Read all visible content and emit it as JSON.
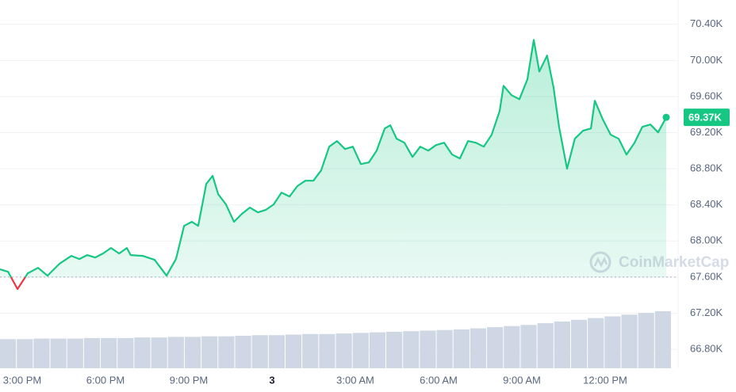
{
  "chart_data": {
    "type": "line",
    "x": [
      -9.8,
      -9.51,
      -9.17,
      -8.8,
      -8.43,
      -8.09,
      -7.66,
      -7.23,
      -6.94,
      -6.66,
      -6.37,
      -6.09,
      -5.8,
      -5.51,
      -5.23,
      -5.09,
      -4.66,
      -4.23,
      -3.8,
      -3.46,
      -3.17,
      -2.89,
      -2.66,
      -2.37,
      -2.14,
      -1.94,
      -1.66,
      -1.37,
      -1.09,
      -0.8,
      -0.51,
      -0.23,
      0.06,
      0.34,
      0.63,
      0.91,
      1.2,
      1.49,
      1.77,
      2.06,
      2.34,
      2.63,
      2.91,
      3.2,
      3.49,
      3.77,
      4.06,
      4.26,
      4.49,
      4.77,
      5.06,
      5.34,
      5.63,
      5.91,
      6.2,
      6.49,
      6.77,
      7.06,
      7.34,
      7.63,
      7.91,
      8.2,
      8.34,
      8.63,
      8.91,
      9.2,
      9.43,
      9.63,
      9.91,
      10.14,
      10.34,
      10.63,
      10.91,
      11.2,
      11.49,
      11.63,
      11.91,
      12.2,
      12.49,
      12.77,
      13.06,
      13.34,
      13.63,
      13.91,
      14.2
    ],
    "series": [
      {
        "color": "#16c784",
        "below_color": "#ea3943",
        "values": [
          67686,
          67659,
          67467,
          67642,
          67703,
          67616,
          67747,
          67835,
          67800,
          67844,
          67817,
          67861,
          67923,
          67861,
          67923,
          67844,
          67835,
          67791,
          67616,
          67800,
          68168,
          68212,
          68168,
          68633,
          68721,
          68519,
          68405,
          68212,
          68300,
          68370,
          68317,
          68344,
          68405,
          68536,
          68493,
          68607,
          68668,
          68668,
          68782,
          69045,
          69107,
          69019,
          69045,
          68852,
          68870,
          69001,
          69247,
          69282,
          69133,
          69089,
          68931,
          69045,
          69001,
          69063,
          69089,
          68957,
          68914,
          69107,
          69089,
          69045,
          69177,
          69440,
          69720,
          69615,
          69571,
          69791,
          70229,
          69878,
          70054,
          69703,
          69264,
          68800,
          69133,
          69221,
          69247,
          69554,
          69352,
          69177,
          69133,
          68957,
          69089,
          69264,
          69291,
          69203,
          69370
        ]
      }
    ],
    "reference_value": 67600,
    "current_price": {
      "value": 69370,
      "label": "69.37K"
    },
    "volume": {
      "color": "#cfd6e4",
      "lim": [
        0,
        100
      ],
      "values": [
        51,
        51,
        52,
        52,
        52,
        53,
        53,
        53,
        54,
        54,
        55,
        55,
        56,
        56,
        57,
        58,
        58,
        59,
        60,
        60,
        61,
        62,
        63,
        64,
        65,
        66,
        67,
        68,
        70,
        72,
        74,
        76,
        79,
        82,
        85,
        88,
        91,
        94,
        97,
        100
      ]
    },
    "xlim": [
      -9.8,
      14.4
    ],
    "xticks": [
      {
        "value": -9,
        "label": "3:00 PM"
      },
      {
        "value": -6,
        "label": "6:00 PM"
      },
      {
        "value": -3,
        "label": "9:00 PM"
      },
      {
        "value": 0,
        "label": "3"
      },
      {
        "value": 3,
        "label": "3:00 AM"
      },
      {
        "value": 6,
        "label": "6:00 AM"
      },
      {
        "value": 9,
        "label": "9:00 AM"
      },
      {
        "value": 12,
        "label": "12:00 PM"
      }
    ],
    "ylim": [
      66590,
      70670
    ],
    "yticks": [
      {
        "value": 66800,
        "label": "66.80K"
      },
      {
        "value": 67200,
        "label": "67.20K"
      },
      {
        "value": 67600,
        "label": "67.60K"
      },
      {
        "value": 68000,
        "label": "68.00K"
      },
      {
        "value": 68400,
        "label": "68.40K"
      },
      {
        "value": 68800,
        "label": "68.80K"
      },
      {
        "value": 69200,
        "label": "69.20K"
      },
      {
        "value": 69600,
        "label": "69.60K"
      },
      {
        "value": 70000,
        "label": "70.00K"
      },
      {
        "value": 70400,
        "label": "70.40K"
      }
    ],
    "grid": true,
    "watermark": "CoinMarketCap"
  }
}
